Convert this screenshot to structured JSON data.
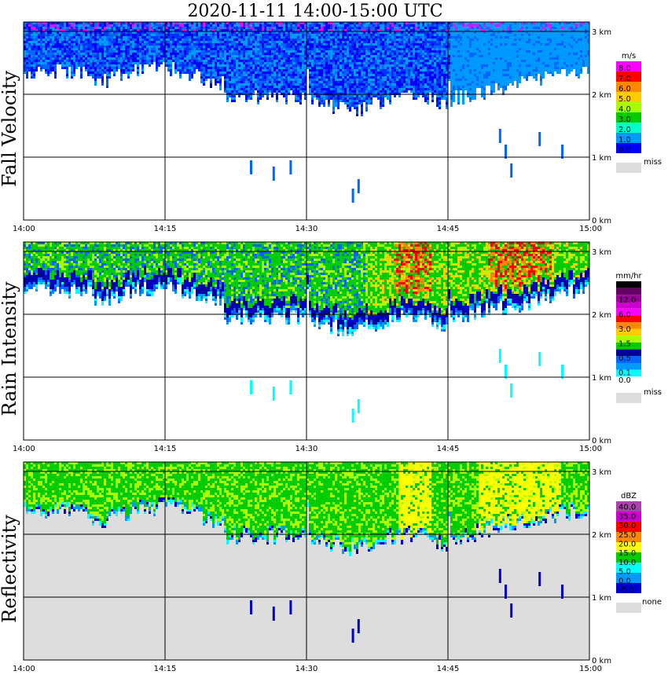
{
  "title": "2020-11-11   14:00-15:00 UTC",
  "chart_data": [
    {
      "type": "heatmap",
      "ylabel": "Fall Velocity",
      "x_ticks": [
        "14:00",
        "14:15",
        "14:30",
        "14:45",
        "15:00"
      ],
      "y_ticks": [
        "0 km",
        "1 km",
        "2 km",
        "3 km"
      ],
      "xlim": [
        "14:00",
        "15:00"
      ],
      "ylim_km": [
        0,
        3.2
      ],
      "grid": true,
      "colorbar": {
        "unit": "m/s",
        "labels": [
          "8.0",
          "7.0",
          "6.0",
          "5.0",
          "4.0",
          "3.0",
          "2.0",
          "1.0",
          "0.0"
        ],
        "colors": [
          "#ff00ff",
          "#ff0000",
          "#ff8800",
          "#ffcc00",
          "#aaff00",
          "#00cc00",
          "#00ffcc",
          "#0099ff",
          "#0000ff"
        ],
        "missing_label": "miss",
        "missing_color": "#dddddd"
      },
      "field": "velocity"
    },
    {
      "type": "heatmap",
      "ylabel": "Rain Intensity",
      "x_ticks": [
        "14:00",
        "14:15",
        "14:30",
        "14:45",
        "15:00"
      ],
      "y_ticks": [
        "0 km",
        "1 km",
        "2 km",
        "3 km"
      ],
      "xlim": [
        "14:00",
        "15:00"
      ],
      "ylim_km": [
        0,
        3.2
      ],
      "grid": true,
      "colorbar": {
        "unit": "mm/hr",
        "labels": [
          "48.0",
          "",
          "12.0",
          "",
          "6.0",
          "",
          "3.0",
          "",
          "1.5",
          "",
          "0.5",
          "",
          "0.1",
          "0.0"
        ],
        "colors": [
          "#000000",
          "#660066",
          "#990099",
          "#cc00cc",
          "#ff00ff",
          "#ff0000",
          "#ff8800",
          "#ffcc00",
          "#aaff00",
          "#00cc00",
          "#000099",
          "#0066ff",
          "#0099ff",
          "#00ffff",
          "#ffffff"
        ],
        "missing_label": "miss",
        "missing_color": "#dddddd"
      },
      "field": "rain"
    },
    {
      "type": "heatmap",
      "ylabel": "Reflectivity",
      "x_ticks": [
        "14:00",
        "14:15",
        "14:30",
        "14:45",
        "15:00"
      ],
      "y_ticks": [
        "0 km",
        "1 km",
        "2 km",
        "3 km"
      ],
      "xlim": [
        "14:00",
        "15:00"
      ],
      "ylim_km": [
        0,
        3.2
      ],
      "grid": true,
      "colorbar": {
        "unit": "dBZ",
        "labels": [
          "40.0",
          "35.0",
          "30.0",
          "25.0",
          "20.0",
          "15.0",
          "10.0",
          "5.0",
          "0.0",
          "-5.0"
        ],
        "colors": [
          "#aa44aa",
          "#cc00cc",
          "#ff0000",
          "#ff8800",
          "#ffff00",
          "#00cc00",
          "#00ffff",
          "#0099ff",
          "#0000cc"
        ],
        "missing_label": "none",
        "missing_color": "#dddddd"
      },
      "field": "refl"
    }
  ]
}
